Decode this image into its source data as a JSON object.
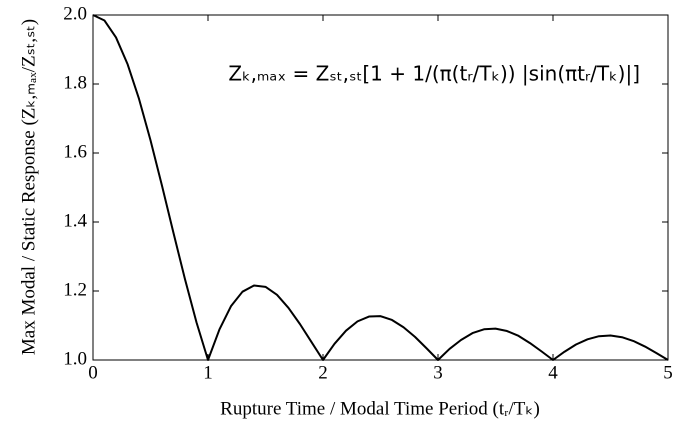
{
  "chart_data": {
    "type": "line",
    "xlabel": "Rupture Time / Modal Time Period (tᵣ/Tₖ)",
    "ylabel": "Max Modal / Static Response (Zₖ,ₘₐₓ/Zₛₜ,ₛₜ)",
    "annotation": "Zₖ,ₘₐₓ = Zₛₜ,ₛₜ[1 + 1/(π(tᵣ/Tₖ)) |sin(πtᵣ/Tₖ)|]",
    "x": [
      0,
      0.1,
      0.2,
      0.3,
      0.4,
      0.5,
      0.6,
      0.7,
      0.8,
      0.9,
      1,
      1.1,
      1.2,
      1.3,
      1.4,
      1.5,
      1.6,
      1.7,
      1.8,
      1.9,
      2,
      2.1,
      2.2,
      2.3,
      2.4,
      2.5,
      2.6,
      2.7,
      2.8,
      2.9,
      3,
      3.1,
      3.2,
      3.3,
      3.4,
      3.5,
      3.6,
      3.7,
      3.8,
      3.9,
      4,
      4.1,
      4.2,
      4.3,
      4.4,
      4.5,
      4.6,
      4.7,
      4.8,
      4.9,
      5
    ],
    "series": [
      {
        "color": "#000000",
        "values": [
          2,
          1.984,
          1.935,
          1.858,
          1.757,
          1.637,
          1.505,
          1.368,
          1.234,
          1.109,
          1,
          1.089,
          1.156,
          1.198,
          1.216,
          1.212,
          1.189,
          1.151,
          1.104,
          1.052,
          1,
          1.047,
          1.085,
          1.112,
          1.126,
          1.127,
          1.116,
          1.095,
          1.067,
          1.034,
          1,
          1.032,
          1.058,
          1.078,
          1.089,
          1.091,
          1.084,
          1.07,
          1.049,
          1.025,
          1,
          1.024,
          1.045,
          1.06,
          1.069,
          1.071,
          1.066,
          1.055,
          1.039,
          1.02,
          1
        ]
      }
    ],
    "xlim": [
      0,
      5
    ],
    "xticks": [
      0,
      1,
      2,
      3,
      4,
      5
    ],
    "ylim": [
      1,
      2
    ],
    "yticks": [
      {
        "value": 1,
        "label": "1.0"
      },
      1.2,
      1.4,
      1.6,
      1.8,
      {
        "value": 2,
        "label": "2.0"
      }
    ],
    "grid": false
  }
}
